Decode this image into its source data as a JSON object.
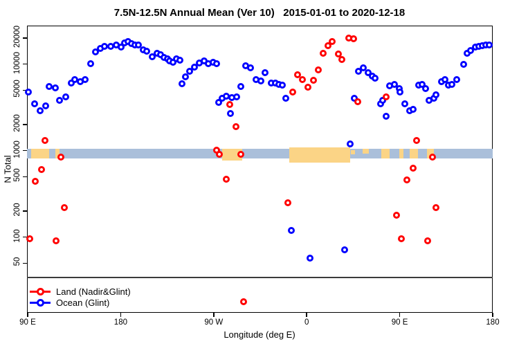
{
  "title": "7.5N-12.5N Annual Mean (Ver 10)   2015-01-01 to 2020-12-18",
  "axes": {
    "x_label": "Longitude (deg E)",
    "y_label": "N Total"
  },
  "legend": {
    "items": [
      {
        "label": "Land (Nadir&Glint)",
        "color": "#ff0000"
      },
      {
        "label": "Ocean (Glint)",
        "color": "#0000ff"
      }
    ]
  },
  "colors": {
    "land_series": "#ff0000",
    "ocean_series": "#0000ff",
    "ocean_band": "#aabfda",
    "land_band": "#fbd486",
    "axis": "#000000",
    "separator": "#3a3a3a"
  },
  "chart_data": {
    "type": "scatter",
    "title": "7.5N-12.5N Annual Mean (Ver 10)   2015-01-01 to 2020-12-18",
    "xlabel": "Longitude (deg E)",
    "ylabel": "N Total",
    "x_axis": {
      "note": "degrees eastward from 90E; axis wraps 90E-180-90W-0-90E-180",
      "range_deg": [
        0,
        450
      ],
      "tick_positions_deg": [
        0,
        90,
        180,
        270,
        360,
        450
      ],
      "tick_labels": [
        "90 E",
        "180",
        "90 W",
        "0",
        "90 E",
        "180"
      ]
    },
    "y_axis": {
      "scale": "log",
      "ticks": [
        50,
        100,
        200,
        500,
        1000,
        2000,
        5000,
        10000,
        20000
      ],
      "range": [
        15,
        28000
      ]
    },
    "grid": false,
    "legend_position": "bottom-left",
    "map_strip": {
      "description": "horizontal land/ocean strip drawn across the plot near N=1000",
      "ocean_value_range": [
        815,
        1050
      ],
      "land_segments_deg": [
        {
          "from": 3.3,
          "to": 20.8
        },
        {
          "from": 26.8,
          "to": 30.8
        },
        {
          "from": 188.2,
          "to": 207.6,
          "v_top": 1050,
          "v_bot": 770
        },
        {
          "from": 253.1,
          "to": 312.1,
          "v_top": 1090,
          "v_bot": 730
        },
        {
          "from": 312.8,
          "to": 316.8,
          "v_top": 1020,
          "v_bot": 900
        },
        {
          "from": 324.1,
          "to": 330.1,
          "v_top": 1050,
          "v_bot": 930
        },
        {
          "from": 342.2,
          "to": 350.2
        },
        {
          "from": 359.6,
          "to": 363.6
        },
        {
          "from": 369.6,
          "to": 377.7
        },
        {
          "from": 386.4,
          "to": 393.1
        }
      ]
    },
    "series": [
      {
        "name": "Land (Nadir&Glint)",
        "color": "#ff0000",
        "points": [
          [
            16.7,
            1300
          ],
          [
            32.1,
            840
          ],
          [
            13.4,
            600
          ],
          [
            7.4,
            440
          ],
          [
            35.5,
            220
          ],
          [
            2.0,
            95
          ],
          [
            27.5,
            90
          ],
          [
            182.8,
            1010
          ],
          [
            185.5,
            910
          ],
          [
            206.3,
            910
          ],
          [
            195.5,
            3400
          ],
          [
            201.6,
            1900
          ],
          [
            192.2,
            470
          ],
          [
            208.9,
            18
          ],
          [
            251.8,
            250
          ],
          [
            256.5,
            4800
          ],
          [
            261.2,
            7600
          ],
          [
            265.8,
            6600
          ],
          [
            271.2,
            5400
          ],
          [
            276.6,
            6500
          ],
          [
            281.3,
            8600
          ],
          [
            285.9,
            13300
          ],
          [
            290.6,
            16500
          ],
          [
            294.6,
            18300
          ],
          [
            300.7,
            13000
          ],
          [
            304.0,
            11400
          ],
          [
            310.7,
            20100
          ],
          [
            315.4,
            19700
          ],
          [
            319.4,
            3700
          ],
          [
            346.9,
            4200
          ],
          [
            376.3,
            1300
          ],
          [
            391.8,
            840
          ],
          [
            373.0,
            630
          ],
          [
            367.0,
            460
          ],
          [
            395.1,
            220
          ],
          [
            356.9,
            180
          ],
          [
            361.6,
            95
          ],
          [
            387.1,
            90
          ]
        ]
      },
      {
        "name": "Ocean (Glint)",
        "color": "#0000ff",
        "points": [
          [
            0.7,
            4800
          ],
          [
            6.7,
            3500
          ],
          [
            12.1,
            2900
          ],
          [
            17.4,
            3300
          ],
          [
            20.8,
            5500
          ],
          [
            26.8,
            5300
          ],
          [
            30.8,
            3800
          ],
          [
            36.8,
            4200
          ],
          [
            42.2,
            6000
          ],
          [
            45.5,
            6600
          ],
          [
            50.9,
            6300
          ],
          [
            55.6,
            6600
          ],
          [
            60.9,
            10100
          ],
          [
            65.6,
            13900
          ],
          [
            70.3,
            15200
          ],
          [
            74.3,
            16100
          ],
          [
            80.4,
            16100
          ],
          [
            85.7,
            16700
          ],
          [
            90.4,
            15800
          ],
          [
            93.8,
            17600
          ],
          [
            97.1,
            18300
          ],
          [
            100.4,
            17400
          ],
          [
            103.8,
            16700
          ],
          [
            107.1,
            16700
          ],
          [
            111.8,
            14700
          ],
          [
            115.2,
            14000
          ],
          [
            120.5,
            12200
          ],
          [
            125.2,
            13400
          ],
          [
            128.6,
            12800
          ],
          [
            131.9,
            12000
          ],
          [
            135.3,
            11500
          ],
          [
            137.3,
            10900
          ],
          [
            140.6,
            10500
          ],
          [
            144.0,
            11500
          ],
          [
            147.3,
            11100
          ],
          [
            149.3,
            5900
          ],
          [
            152.7,
            7100
          ],
          [
            156.7,
            8300
          ],
          [
            161.4,
            9200
          ],
          [
            166.1,
            10300
          ],
          [
            170.8,
            10900
          ],
          [
            174.8,
            10100
          ],
          [
            179.5,
            10500
          ],
          [
            182.8,
            10100
          ],
          [
            184.8,
            3600
          ],
          [
            188.2,
            4000
          ],
          [
            192.2,
            4300
          ],
          [
            197.6,
            4100
          ],
          [
            202.3,
            4200
          ],
          [
            206.3,
            5500
          ],
          [
            196.2,
            2700
          ],
          [
            211.0,
            9600
          ],
          [
            215.6,
            9100
          ],
          [
            221.0,
            6600
          ],
          [
            225.7,
            6400
          ],
          [
            229.7,
            7900
          ],
          [
            235.7,
            6000
          ],
          [
            239.7,
            6000
          ],
          [
            243.1,
            5800
          ],
          [
            246.4,
            5700
          ],
          [
            249.8,
            4000
          ],
          [
            255.1,
            120
          ],
          [
            273.2,
            57
          ],
          [
            306.7,
            71
          ],
          [
            312.1,
            1200
          ],
          [
            316.1,
            4000
          ],
          [
            320.1,
            8300
          ],
          [
            324.8,
            9100
          ],
          [
            329.5,
            7900
          ],
          [
            333.5,
            7300
          ],
          [
            336.2,
            6900
          ],
          [
            341.5,
            3500
          ],
          [
            343.5,
            3800
          ],
          [
            346.9,
            2500
          ],
          [
            350.2,
            5600
          ],
          [
            354.9,
            5800
          ],
          [
            359.6,
            5200
          ],
          [
            360.3,
            4800
          ],
          [
            365.0,
            3500
          ],
          [
            369.6,
            2900
          ],
          [
            373.0,
            3000
          ],
          [
            378.4,
            5700
          ],
          [
            381.7,
            5800
          ],
          [
            385.1,
            5200
          ],
          [
            388.4,
            3800
          ],
          [
            393.1,
            4000
          ],
          [
            395.1,
            4400
          ],
          [
            400.5,
            6300
          ],
          [
            403.8,
            6600
          ],
          [
            407.2,
            5700
          ],
          [
            410.5,
            5800
          ],
          [
            415.2,
            6600
          ],
          [
            421.9,
            10000
          ],
          [
            425.3,
            13400
          ],
          [
            428.6,
            14400
          ],
          [
            433.3,
            15800
          ],
          [
            436.7,
            16100
          ],
          [
            440.0,
            16400
          ],
          [
            443.4,
            16700
          ],
          [
            446.7,
            16700
          ]
        ]
      }
    ]
  }
}
